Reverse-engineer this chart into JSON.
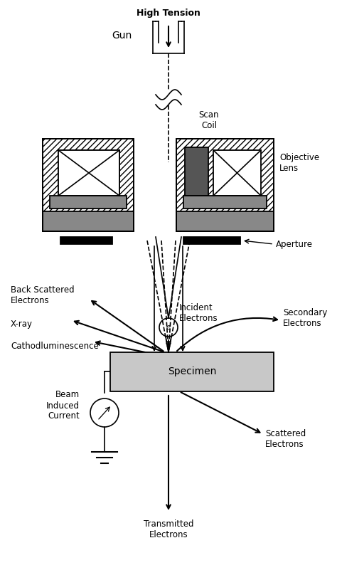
{
  "figsize": [
    4.74,
    8.01
  ],
  "dpi": 100,
  "bg_color": "#ffffff",
  "xlim": [
    0,
    474
  ],
  "ylim": [
    0,
    801
  ],
  "labels": {
    "high_tension": "High Tension",
    "gun": "Gun",
    "scan_coil": "Scan\nCoil",
    "objective_lens": "Objective\nLens",
    "aperture": "Aperture",
    "incident_electrons": "Incident\nElectrons",
    "back_scattered": "Back Scattered\nElectrons",
    "xray": "X-ray",
    "cathodoluminescence": "Cathodluminescence",
    "secondary_electrons": "Secondary\nElectrons",
    "specimen": "Specimen",
    "beam_induced": "Beam\nInduced\nCurrent",
    "scattered_electrons": "Scattered\nElectrons",
    "transmitted_electrons": "Transmitted\nElectrons"
  }
}
